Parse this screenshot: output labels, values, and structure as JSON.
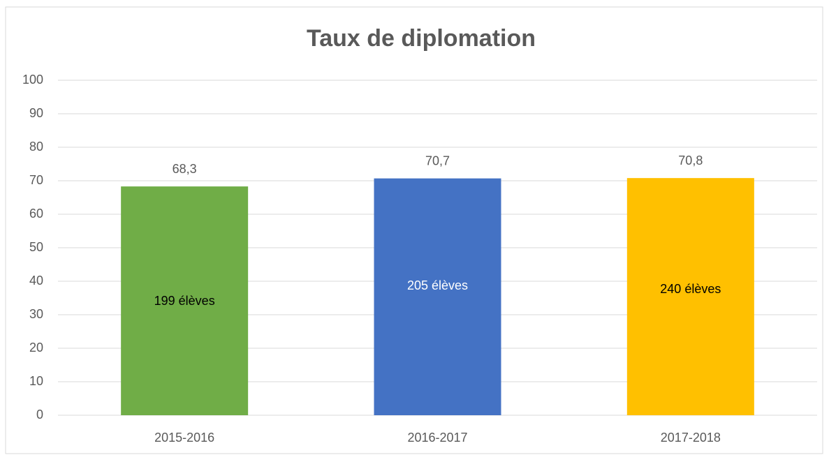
{
  "chart_data": {
    "type": "bar",
    "title": "Taux de diplomation",
    "categories": [
      "2015-2016",
      "2016-2017",
      "2017-2018"
    ],
    "values": [
      68.3,
      70.7,
      70.8
    ],
    "value_labels": [
      "68,3",
      "70,7",
      "70,8"
    ],
    "colors": [
      "#70ad47",
      "#4472c4",
      "#ffc000"
    ],
    "annotations": [
      "199 élèves",
      "205 élèves",
      "240 élèves"
    ],
    "ylim": [
      0,
      100
    ],
    "yticks": [
      0,
      10,
      20,
      30,
      40,
      50,
      60,
      70,
      80,
      90,
      100
    ],
    "grid": true
  }
}
